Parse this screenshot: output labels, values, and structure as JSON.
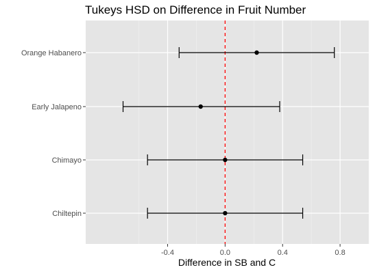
{
  "chart_data": {
    "type": "errorbar",
    "title": "Tukeys HSD on Difference in Fruit Number",
    "xlabel": "Difference in SB and C",
    "ylabel": "",
    "xlim": [
      -0.97,
      1.0
    ],
    "x_ticks": [
      -0.4,
      0.0,
      0.4,
      0.8
    ],
    "x_tick_labels": [
      "-0.4",
      "0.0",
      "0.4",
      "0.8"
    ],
    "reference_line": {
      "x": 0.0,
      "style": "dashed",
      "color": "#ff0000"
    },
    "grid": true,
    "categories": [
      "Orange Habanero",
      "Early Jalapeno",
      "Chimayo",
      "Chiltepin"
    ],
    "estimates": [
      0.22,
      -0.17,
      0.0,
      0.0
    ],
    "lower": [
      -0.32,
      -0.71,
      -0.54,
      -0.54
    ],
    "upper": [
      0.76,
      0.38,
      0.54,
      0.54
    ],
    "colors": {
      "panel": "#e5e5e5",
      "grid_major": "#ffffff",
      "point": "#000000",
      "bar": "#000000"
    }
  }
}
